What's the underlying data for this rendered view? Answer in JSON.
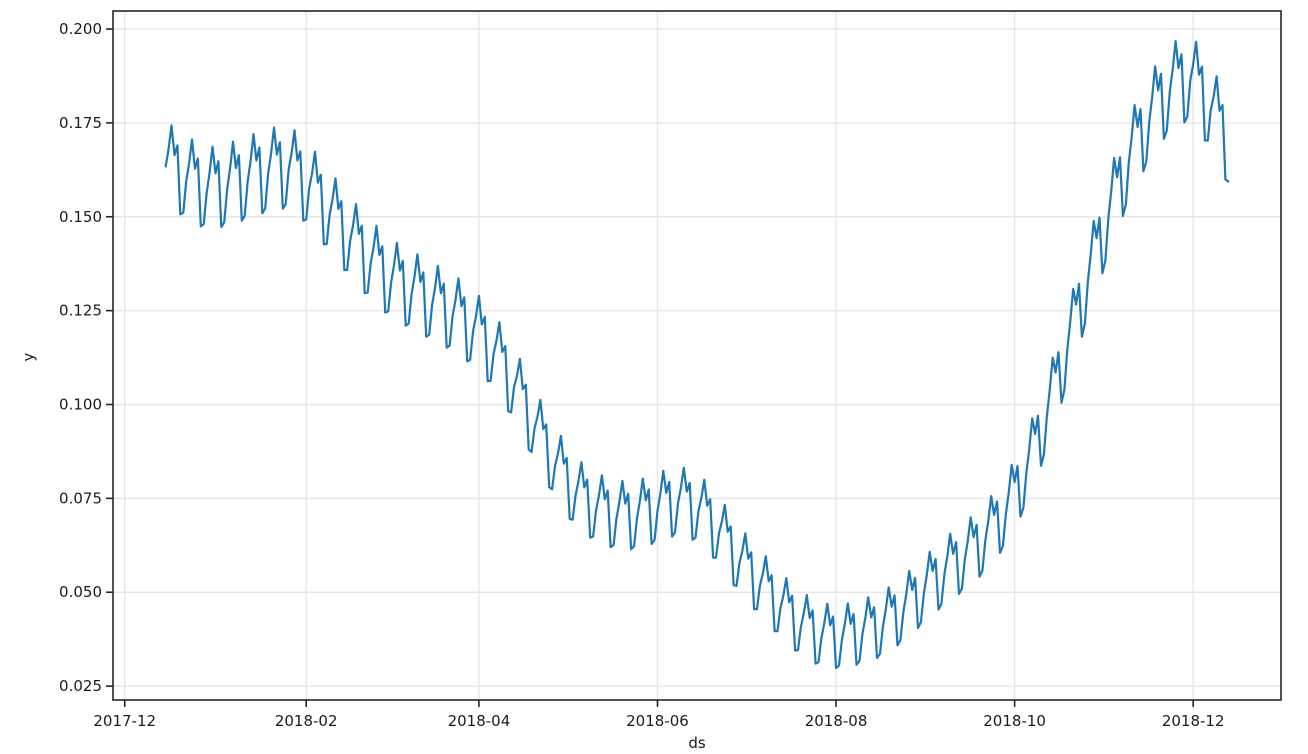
{
  "chart_data": {
    "type": "line",
    "title": "",
    "xlabel": "ds",
    "ylabel": "y",
    "legend": null,
    "grid": true,
    "line_color": "#1f77b4",
    "grid_color": "#e7e7e7",
    "spine_color": "#262626",
    "text_color": "#1c1c1c",
    "background_color": "#ffffff",
    "x_tick_labels": [
      "2017-12",
      "2018-02",
      "2018-04",
      "2018-06",
      "2018-08",
      "2018-10",
      "2018-12"
    ],
    "x_tick_dates": [
      "2017-12-01",
      "2018-02-01",
      "2018-04-01",
      "2018-06-01",
      "2018-08-01",
      "2018-10-01",
      "2018-12-01"
    ],
    "y_tick_labels": [
      "0.025",
      "0.050",
      "0.075",
      "0.100",
      "0.125",
      "0.150",
      "0.175",
      "0.200"
    ],
    "y_ticks": [
      0.025,
      0.05,
      0.075,
      0.1,
      0.125,
      0.15,
      0.175,
      0.2
    ],
    "xlim_dates": [
      "2017-11-27",
      "2018-12-31"
    ],
    "ylim": [
      0.0213,
      0.2048
    ],
    "data_start": "2017-12-15",
    "data_end": "2018-12-13",
    "trend_anchors": [
      [
        "2017-12-15",
        0.165
      ],
      [
        "2017-12-22",
        0.161
      ],
      [
        "2017-12-29",
        0.158
      ],
      [
        "2018-01-05",
        0.159
      ],
      [
        "2018-01-12",
        0.161
      ],
      [
        "2018-01-19",
        0.163
      ],
      [
        "2018-01-26",
        0.164
      ],
      [
        "2018-02-02",
        0.159
      ],
      [
        "2018-02-09",
        0.152
      ],
      [
        "2018-02-16",
        0.145
      ],
      [
        "2018-02-23",
        0.139
      ],
      [
        "2018-03-02",
        0.134
      ],
      [
        "2018-03-09",
        0.131
      ],
      [
        "2018-03-16",
        0.128
      ],
      [
        "2018-03-23",
        0.125
      ],
      [
        "2018-03-30",
        0.121
      ],
      [
        "2018-04-06",
        0.115
      ],
      [
        "2018-04-13",
        0.106
      ],
      [
        "2018-04-20",
        0.095
      ],
      [
        "2018-04-27",
        0.085
      ],
      [
        "2018-05-04",
        0.077
      ],
      [
        "2018-05-11",
        0.073
      ],
      [
        "2018-05-18",
        0.071
      ],
      [
        "2018-05-25",
        0.071
      ],
      [
        "2018-06-01",
        0.073
      ],
      [
        "2018-06-08",
        0.075
      ],
      [
        "2018-06-15",
        0.073
      ],
      [
        "2018-06-22",
        0.067
      ],
      [
        "2018-06-29",
        0.059
      ],
      [
        "2018-07-06",
        0.053
      ],
      [
        "2018-07-13",
        0.047
      ],
      [
        "2018-07-20",
        0.042
      ],
      [
        "2018-07-27",
        0.039
      ],
      [
        "2018-08-03",
        0.0385
      ],
      [
        "2018-08-10",
        0.04
      ],
      [
        "2018-08-17",
        0.042
      ],
      [
        "2018-08-24",
        0.046
      ],
      [
        "2018-08-31",
        0.051
      ],
      [
        "2018-09-07",
        0.056
      ],
      [
        "2018-09-14",
        0.06
      ],
      [
        "2018-09-21",
        0.065
      ],
      [
        "2018-09-28",
        0.072
      ],
      [
        "2018-10-05",
        0.083
      ],
      [
        "2018-10-12",
        0.098
      ],
      [
        "2018-10-19",
        0.116
      ],
      [
        "2018-10-26",
        0.134
      ],
      [
        "2018-11-02",
        0.151
      ],
      [
        "2018-11-09",
        0.166
      ],
      [
        "2018-11-16",
        0.177
      ],
      [
        "2018-11-23",
        0.185
      ],
      [
        "2018-11-30",
        0.188
      ],
      [
        "2018-12-07",
        0.18
      ],
      [
        "2018-12-13",
        0.17
      ]
    ],
    "weekly_pattern": [
      -0.15,
      0.35,
      1.0,
      0.3,
      0.6,
      -1.1,
      -1.0
    ],
    "weekly_pattern_epoch": "2017-12-01",
    "weekly_amplitude_base": 0.0073,
    "weekly_amplitude_per_level": 0.0195
  }
}
